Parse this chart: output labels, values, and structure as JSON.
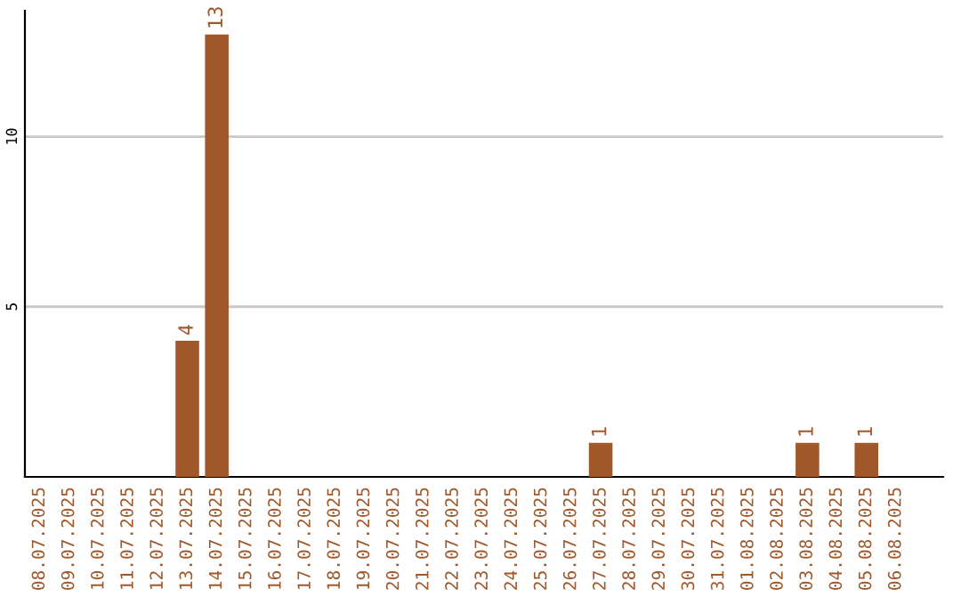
{
  "chart_data": {
    "type": "bar",
    "categories": [
      "08.07.2025",
      "09.07.2025",
      "10.07.2025",
      "11.07.2025",
      "12.07.2025",
      "13.07.2025",
      "14.07.2025",
      "15.07.2025",
      "16.07.2025",
      "17.07.2025",
      "18.07.2025",
      "19.07.2025",
      "20.07.2025",
      "21.07.2025",
      "22.07.2025",
      "23.07.2025",
      "24.07.2025",
      "25.07.2025",
      "26.07.2025",
      "27.07.2025",
      "28.07.2025",
      "29.07.2025",
      "30.07.2025",
      "31.07.2025",
      "01.08.2025",
      "02.08.2025",
      "03.08.2025",
      "04.08.2025",
      "05.08.2025",
      "06.08.2025"
    ],
    "values": [
      0,
      0,
      0,
      0,
      0,
      4,
      13,
      0,
      0,
      0,
      0,
      0,
      0,
      0,
      0,
      0,
      0,
      0,
      0,
      1,
      0,
      0,
      0,
      0,
      0,
      0,
      1,
      0,
      1,
      0
    ],
    "value_labels": [
      null,
      null,
      null,
      null,
      null,
      "4",
      "13",
      null,
      null,
      null,
      null,
      null,
      null,
      null,
      null,
      null,
      null,
      null,
      null,
      "1",
      null,
      null,
      null,
      null,
      null,
      null,
      "1",
      null,
      "1",
      null
    ],
    "color": "#a0582a",
    "ylim": [
      0,
      13.7
    ],
    "yticks": [
      5,
      10
    ],
    "grid": "y"
  }
}
